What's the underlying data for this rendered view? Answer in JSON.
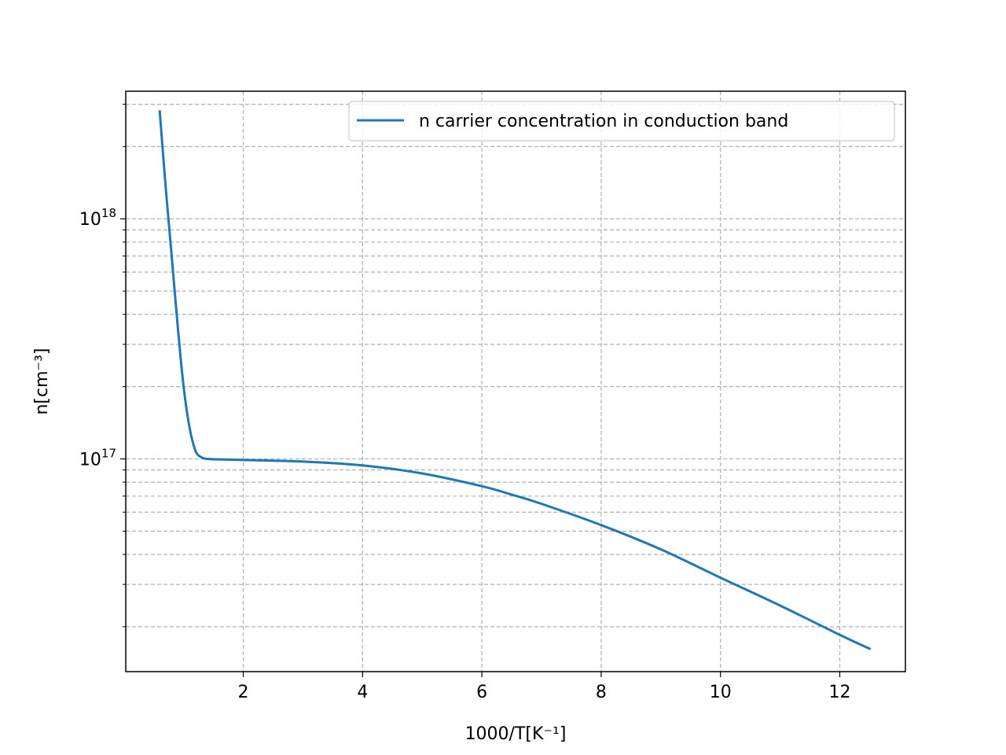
{
  "chart_data": {
    "type": "line",
    "xlabel": "1000/T[K⁻¹]",
    "ylabel": "n[cm⁻³]",
    "x_scale": "linear",
    "y_scale": "log",
    "xlim": [
      0.03,
      13.1
    ],
    "ylim": [
      1.3e+16,
      3.4e+18
    ],
    "grid": true,
    "grid_style": "dashed",
    "legend_position": "top-right",
    "x_ticks": [
      2,
      4,
      6,
      8,
      10,
      12
    ],
    "x_tick_labels": [
      "2",
      "4",
      "6",
      "8",
      "10",
      "12"
    ],
    "y_major_ticks": [
      1e+17,
      1e+18
    ],
    "y_tick_labels": [
      {
        "base": "10",
        "exp": "17"
      },
      {
        "base": "10",
        "exp": "18"
      }
    ],
    "y_minor_ticks": [
      2e+16,
      3e+16,
      4e+16,
      5e+16,
      6e+16,
      7e+16,
      8e+16,
      9e+16,
      2e+17,
      3e+17,
      4e+17,
      5e+17,
      6e+17,
      7e+17,
      8e+17,
      9e+17,
      2e+18,
      3e+18
    ],
    "series": [
      {
        "name": "n carrier concentration in conduction band",
        "color": "#1f77b4",
        "x": [
          0.6,
          0.7,
          0.8,
          0.9,
          1.0,
          1.1,
          1.2,
          1.3,
          1.4,
          1.6,
          2.0,
          3.0,
          4.0,
          5.0,
          6.0,
          6.5,
          7.0,
          8.0,
          9.0,
          10.0,
          11.0,
          12.0,
          12.5
        ],
        "values": [
          2.8e+18,
          1.35e+18,
          7e+17,
          3.6e+17,
          2e+17,
          1.35e+17,
          1.08e+17,
          1.015e+17,
          1e+17,
          9.95e+16,
          9.9e+16,
          9.75e+16,
          9.4e+16,
          8.7e+16,
          7.7e+16,
          7.1e+16,
          6.5e+16,
          5.3e+16,
          4.2e+16,
          3.2e+16,
          2.45e+16,
          1.85e+16,
          1.62e+16
        ]
      }
    ]
  }
}
